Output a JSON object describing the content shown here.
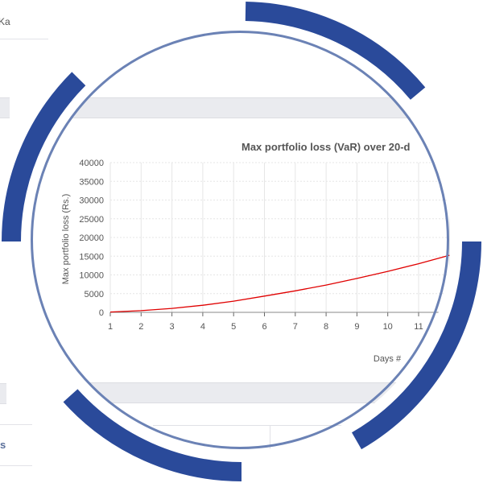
{
  "background": {
    "edge_text_top": "Ka",
    "edge_text_bottom": "s"
  },
  "colors": {
    "ring_dark": "#2a4a9a",
    "ring_light": "#6b82b5",
    "series_line": "#e00000",
    "grid": "#e6e6e6",
    "strip": "#eaebef"
  },
  "chart_data": {
    "type": "line",
    "title": "Max portfolio loss (VaR) over 20-d",
    "xlabel": "Days #",
    "ylabel": "Max portfolio loss (Rs.)",
    "x": [
      1,
      2,
      3,
      4,
      5,
      6,
      7,
      8,
      9,
      10,
      11,
      12
    ],
    "x_tick_labels": [
      "1",
      "2",
      "3",
      "4",
      "5",
      "6",
      "7",
      "8",
      "9",
      "10",
      "11"
    ],
    "y_ticks": [
      0,
      5000,
      10000,
      15000,
      20000,
      25000,
      30000,
      35000,
      40000
    ],
    "y_tick_labels": [
      "0",
      "5000",
      "10000",
      "15000",
      "20000",
      "25000",
      "30000",
      "35000",
      "40000"
    ],
    "ylim": [
      0,
      40000
    ],
    "series": [
      {
        "values": [
          80,
          460,
          1050,
          1900,
          3000,
          4350,
          5750,
          7300,
          9050,
          10950,
          13000,
          15250
        ]
      }
    ],
    "grid": true,
    "legend": "none"
  }
}
